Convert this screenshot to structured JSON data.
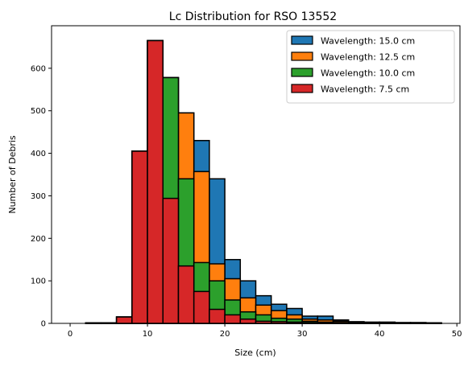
{
  "chart_data": {
    "type": "bar",
    "title": "Lc Distribution for RSO 13552",
    "xlabel": "Size (cm)",
    "ylabel": "Number of Debris",
    "xlim": [
      -2.4,
      50.4
    ],
    "ylim": [
      0,
      700
    ],
    "xticks": [
      0,
      10,
      20,
      30,
      40,
      50
    ],
    "yticks": [
      0,
      100,
      200,
      300,
      400,
      500,
      600
    ],
    "bin_width": 2,
    "bin_starts": [
      0,
      2,
      4,
      6,
      8,
      10,
      12,
      14,
      16,
      18,
      20,
      22,
      24,
      26,
      28,
      30,
      32,
      34,
      36,
      38,
      40,
      42,
      44,
      46
    ],
    "legend_position": "top-right",
    "grid": false,
    "series": [
      {
        "name": "Wavelength: 15.0 cm",
        "color": "#1f77b4",
        "values": [
          0,
          1,
          1,
          15,
          405,
          665,
          578,
          495,
          430,
          340,
          150,
          100,
          65,
          45,
          35,
          17,
          17,
          8,
          4,
          3,
          3,
          2,
          2,
          1
        ]
      },
      {
        "name": "Wavelength: 12.5 cm",
        "color": "#ff7f0e",
        "values": [
          0,
          1,
          1,
          15,
          405,
          665,
          578,
          495,
          357,
          140,
          105,
          60,
          43,
          30,
          20,
          10,
          8,
          5,
          3,
          2,
          2,
          1,
          1,
          1
        ]
      },
      {
        "name": "Wavelength: 10.0 cm",
        "color": "#2ca02c",
        "values": [
          0,
          1,
          1,
          15,
          405,
          665,
          578,
          340,
          143,
          100,
          55,
          27,
          20,
          12,
          10,
          5,
          3,
          2,
          2,
          1,
          1,
          1,
          1,
          1
        ]
      },
      {
        "name": "Wavelength: 7.5 cm",
        "color": "#d62728",
        "values": [
          0,
          1,
          1,
          15,
          405,
          665,
          294,
          135,
          75,
          33,
          20,
          10,
          5,
          4,
          3,
          2,
          1,
          1,
          1,
          1,
          1,
          1,
          1,
          1
        ]
      }
    ]
  }
}
